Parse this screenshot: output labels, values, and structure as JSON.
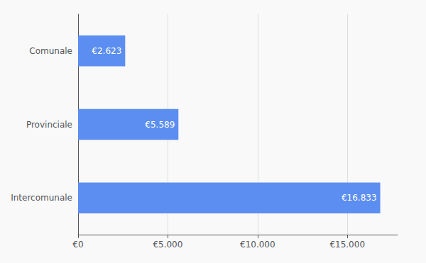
{
  "chart_data": {
    "type": "bar",
    "orientation": "horizontal",
    "categories": [
      "Comunale",
      "Provinciale",
      "Intercomunale"
    ],
    "values": [
      2623,
      5589,
      16833
    ],
    "value_labels": [
      "€2.623",
      "€5.589",
      "€16.833"
    ],
    "data_labels": true,
    "color": "#5b8ef0",
    "xlim": [
      0,
      17800
    ],
    "xticks": [
      {
        "value": 0,
        "label": "€0"
      },
      {
        "value": 5000,
        "label": "€5.000"
      },
      {
        "value": 10000,
        "label": "€10.000"
      },
      {
        "value": 15000,
        "label": "€15.000"
      }
    ],
    "grid": true
  }
}
